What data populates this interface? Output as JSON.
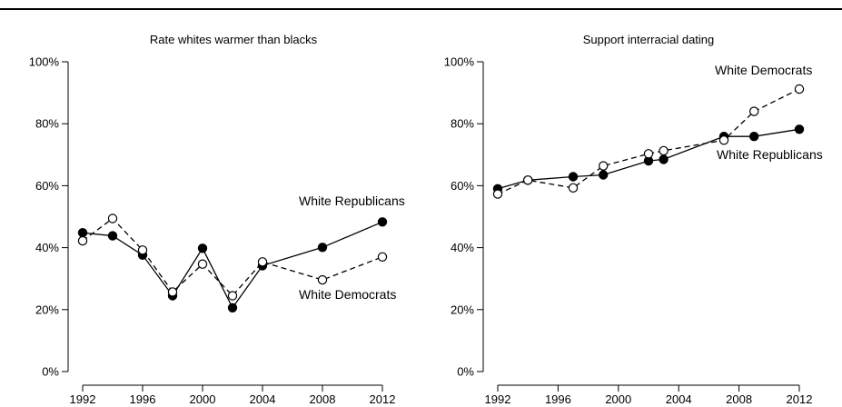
{
  "chart_data": [
    {
      "type": "line",
      "title": "Rate whites warmer than blacks",
      "xlabel": "",
      "ylabel": "",
      "xlim": [
        1992,
        2012
      ],
      "ylim": [
        0,
        100
      ],
      "x_ticks": [
        "1992",
        "1996",
        "2000",
        "2004",
        "2008",
        "2012"
      ],
      "y_ticks": [
        "0%",
        "20%",
        "40%",
        "60%",
        "80%",
        "100%"
      ],
      "grid": false,
      "series": [
        {
          "name": "White Republicans",
          "style": "solid",
          "marker": "filled-circle",
          "color": "#000000",
          "x": [
            1992,
            1994,
            1996,
            1998,
            2000,
            2002,
            2004,
            2008,
            2012
          ],
          "y": [
            44.8,
            43.8,
            37.6,
            24.5,
            39.8,
            20.6,
            34.2,
            40.1,
            48.3
          ]
        },
        {
          "name": "White Democrats",
          "style": "dashed",
          "marker": "open-circle",
          "color": "#000000",
          "x": [
            1992,
            1994,
            1996,
            1998,
            2000,
            2002,
            2004,
            2008,
            2012
          ],
          "y": [
            42.2,
            49.4,
            39.2,
            25.7,
            34.7,
            24.5,
            35.4,
            29.6,
            37.0
          ]
        }
      ],
      "annotations": [
        "White Republicans",
        "White Democrats"
      ]
    },
    {
      "type": "line",
      "title": "Support interracial dating",
      "xlabel": "",
      "ylabel": "",
      "xlim": [
        1992,
        2012
      ],
      "ylim": [
        0,
        100
      ],
      "x_ticks": [
        "1992",
        "1996",
        "2000",
        "2004",
        "2008",
        "2012"
      ],
      "y_ticks": [
        "0%",
        "20%",
        "40%",
        "60%",
        "80%",
        "100%"
      ],
      "grid": false,
      "series": [
        {
          "name": "White Republicans",
          "style": "solid",
          "marker": "filled-circle",
          "color": "#000000",
          "x": [
            1992,
            1994,
            1997,
            1999,
            2002,
            2003,
            2007,
            2009,
            2012
          ],
          "y": [
            59.0,
            61.8,
            62.9,
            63.5,
            68.0,
            68.5,
            75.9,
            75.9,
            78.2
          ]
        },
        {
          "name": "White Democrats",
          "style": "dashed",
          "marker": "open-circle",
          "color": "#000000",
          "x": [
            1992,
            1994,
            1997,
            1999,
            2002,
            2003,
            2007,
            2009,
            2012
          ],
          "y": [
            57.3,
            61.8,
            59.3,
            66.4,
            70.3,
            71.3,
            74.7,
            84.0,
            91.2
          ]
        }
      ],
      "annotations": [
        "White Democrats",
        "White Republicans"
      ]
    }
  ]
}
